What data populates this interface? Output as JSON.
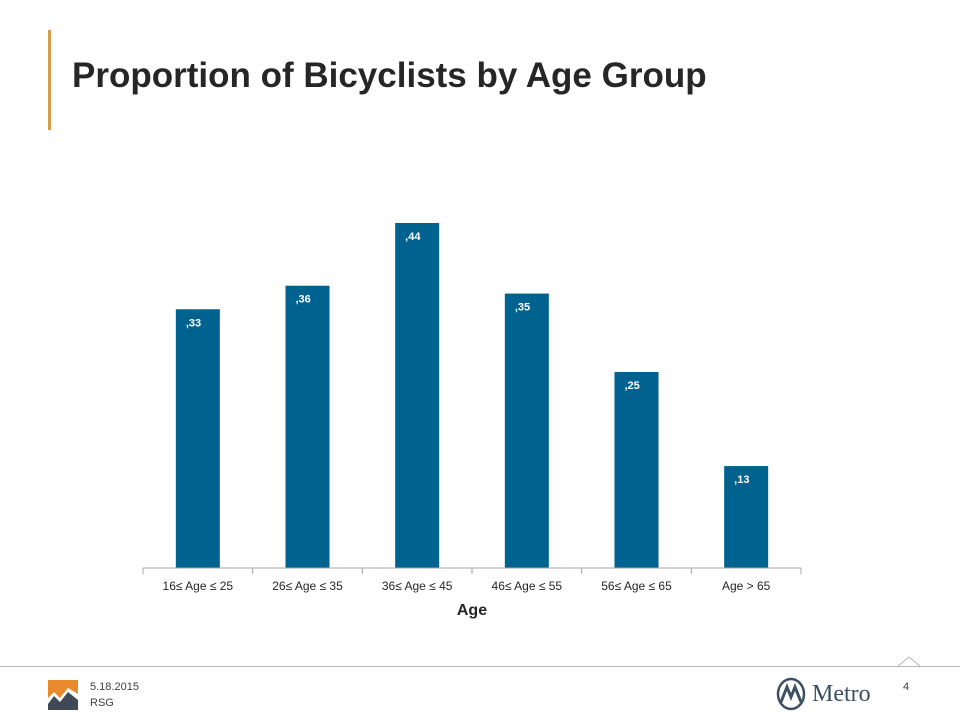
{
  "slide": {
    "title": "Proportion of Bicyclists by Age Group",
    "date": "5.18.2015",
    "org": "RSG",
    "page_number": "4",
    "metro_label": "Metro"
  },
  "colors": {
    "accent": "#d89a4a",
    "bar": "#00628f",
    "footer_line": "#b8b8b8",
    "metro_blue": "#3d4f63"
  },
  "icons": [
    "rsg-logo-icon",
    "metro-logo-icon"
  ],
  "chart_data": {
    "type": "bar",
    "categories": [
      "16≤ Age ≤ 25",
      "26≤ Age ≤ 35",
      "36≤ Age ≤ 45",
      "46≤ Age ≤ 55",
      "56≤ Age ≤ 65",
      "Age > 65"
    ],
    "values": [
      0.33,
      0.36,
      0.44,
      0.35,
      0.25,
      0.13
    ],
    "data_labels": [
      ",33",
      ",36",
      ",44",
      ",35",
      ",25",
      ",13"
    ],
    "title": "",
    "xlabel": "Age",
    "ylabel": "",
    "ylim": [
      0,
      0.44
    ],
    "grid": false,
    "legend": "none"
  }
}
